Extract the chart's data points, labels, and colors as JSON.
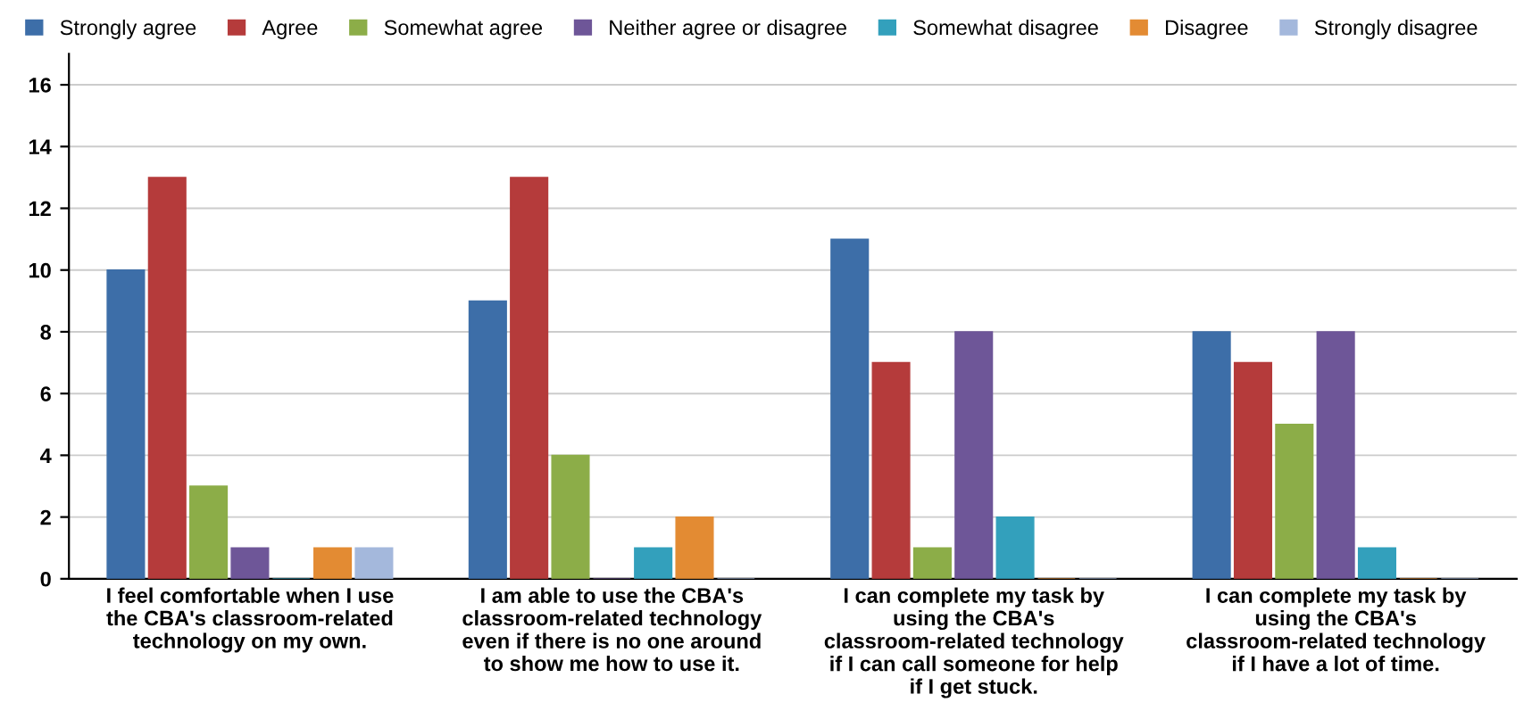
{
  "chart_data": {
    "type": "bar",
    "categories": [
      "I feel comfortable when I use\nthe CBA's classroom-related\ntechnology on my own.",
      "I am able to use the CBA's\nclassroom-related technology\neven if there is no one around\nto show me how to use it.",
      "I can complete my task by\nusing the CBA's\nclassroom-related technology\nif I can call someone for help\nif I get stuck.",
      "I can complete my task by\nusing the CBA's\nclassroom-related technology\nif I have a lot of time."
    ],
    "series": [
      {
        "name": "Strongly agree",
        "color": "#3d6ea8",
        "values": [
          10,
          9,
          11,
          8
        ]
      },
      {
        "name": "Agree",
        "color": "#b53b3b",
        "values": [
          13,
          13,
          7,
          7
        ]
      },
      {
        "name": "Somewhat agree",
        "color": "#8cad48",
        "values": [
          3,
          4,
          1,
          5
        ]
      },
      {
        "name": "Neither agree or disagree",
        "color": "#6e5698",
        "values": [
          1,
          0,
          8,
          8
        ]
      },
      {
        "name": "Somewhat disagree",
        "color": "#33a0bc",
        "values": [
          0,
          1,
          2,
          1
        ]
      },
      {
        "name": "Disagree",
        "color": "#e38b33",
        "values": [
          1,
          2,
          0,
          0
        ]
      },
      {
        "name": "Strongly disagree",
        "color": "#a4b8dc",
        "values": [
          1,
          0,
          0,
          0
        ]
      }
    ],
    "ylim": [
      0,
      17
    ],
    "yticks": [
      0,
      2,
      4,
      6,
      8,
      10,
      12,
      14,
      16
    ],
    "grid": "y",
    "legend": "top"
  }
}
